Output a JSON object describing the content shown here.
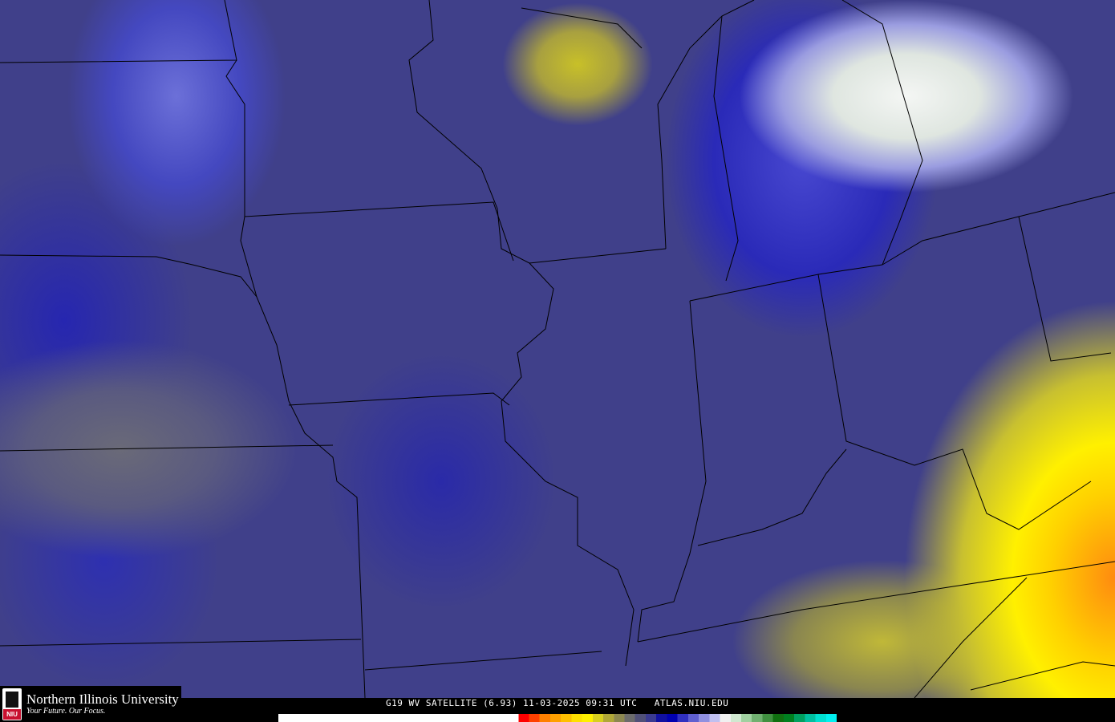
{
  "logo": {
    "name": "Northern Illinois University",
    "tagline": "Your Future. Our Focus.",
    "badge": "NIU"
  },
  "caption": "G19 WV SATELLITE (6.93) 11-03-2025 09:31 UTC   ATLAS.NIU.EDU",
  "colorbar": {
    "colors": [
      "#ffffff",
      "#ff0000",
      "#ff4000",
      "#ff8000",
      "#ffa000",
      "#ffc000",
      "#ffe000",
      "#fff000",
      "#d8d020",
      "#b0a838",
      "#8c8850",
      "#6c6c6c",
      "#505078",
      "#3a3a90",
      "#1010a0",
      "#0000b0",
      "#3030c0",
      "#6060d0",
      "#9090e0",
      "#c0c0f0",
      "#f0f0f0",
      "#d0e8d0",
      "#a0d0a0",
      "#70b070",
      "#409040",
      "#107010",
      "#008020",
      "#00a060",
      "#00c0a0",
      "#00e0d0",
      "#00f0f0"
    ]
  }
}
